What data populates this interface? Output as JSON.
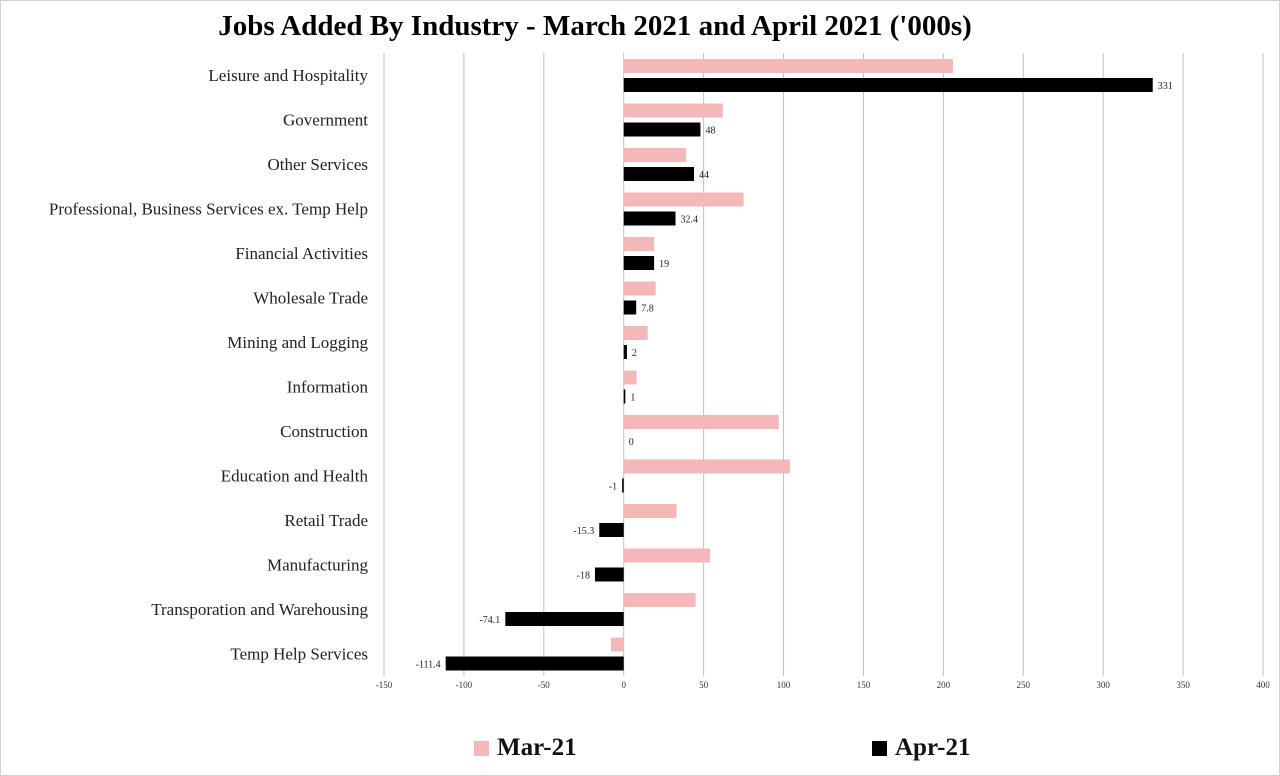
{
  "title": "Jobs Added By Industry - March 2021 and April 2021 ('000s)",
  "colors": {
    "mar": "#f4b8b8",
    "apr": "#000000",
    "grid": "#bfbfbf"
  },
  "legend": {
    "mar_label": "Mar-21",
    "apr_label": "Apr-21"
  },
  "chart_data": {
    "type": "bar",
    "orientation": "horizontal",
    "title": "Jobs Added By Industry - March 2021 and April 2021 ('000s)",
    "categories": [
      "Leisure and Hospitality",
      "Government",
      "Other Services",
      "Professional, Business Services ex. Temp Help",
      "Financial Activities",
      "Wholesale Trade",
      "Mining and Logging",
      "Information",
      "Construction",
      "Education and Health",
      "Retail Trade",
      "Manufacturing",
      "Transporation and Warehousing",
      "Temp Help Services"
    ],
    "series": [
      {
        "name": "Mar-21",
        "values": [
          206,
          62,
          39,
          75,
          19,
          20,
          15,
          8,
          97,
          104,
          33,
          54,
          45,
          -8
        ]
      },
      {
        "name": "Apr-21",
        "values": [
          331,
          48,
          44,
          32.4,
          19,
          7.8,
          2,
          1,
          0,
          -1,
          -15.3,
          -18,
          -74.1,
          -111.4
        ]
      }
    ],
    "data_labels": [
      "331",
      "48",
      "44",
      "32.4",
      "19",
      "7.8",
      "2",
      "1",
      "0",
      "-1",
      "-15.3",
      "-18",
      "-74.1",
      "-111.4"
    ],
    "xlim": [
      -150,
      400
    ],
    "xticks": [
      -150,
      -100,
      -50,
      0,
      50,
      100,
      150,
      200,
      250,
      300,
      350,
      400
    ],
    "xtick_labels": [
      "-150",
      "-100",
      "-50",
      "0",
      "50",
      "100",
      "150",
      "200",
      "250",
      "300",
      "350",
      "400"
    ],
    "grid": true,
    "legend_position": "bottom"
  }
}
